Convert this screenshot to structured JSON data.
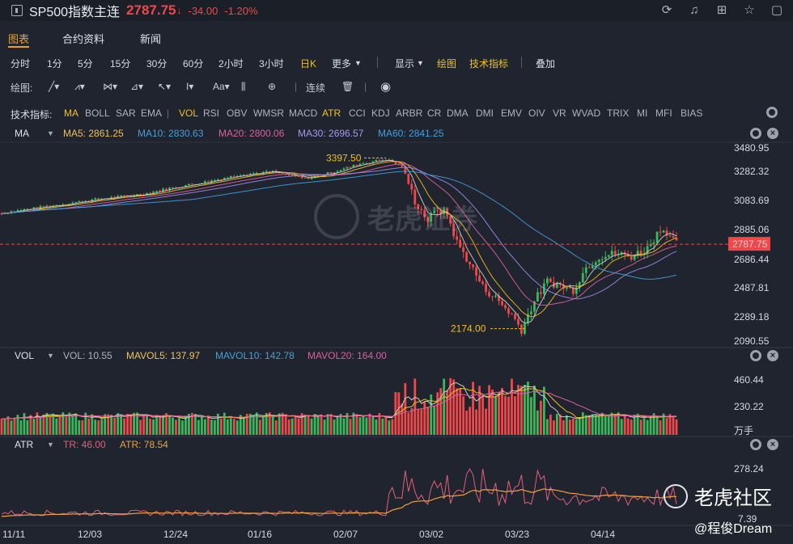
{
  "header": {
    "title": "SP500指数主连",
    "price": "2787.75",
    "arrow": "↓",
    "change": "-34.00",
    "change_pct": "-1.20%",
    "icons": [
      "refresh-icon",
      "bell-icon",
      "grid-icon",
      "star-icon",
      "square-icon"
    ]
  },
  "tabs": [
    "图表",
    "合约资料",
    "新闻"
  ],
  "periods": [
    "分时",
    "1分",
    "5分",
    "15分",
    "30分",
    "60分",
    "2小时",
    "3小时",
    "日K",
    "更多"
  ],
  "period_tools": [
    "显示",
    "绘图",
    "技术指标",
    "叠加"
  ],
  "drawbar": {
    "label": "绘图:",
    "continuous": "连续"
  },
  "indicators": {
    "label": "技术指标:",
    "main": [
      "MA",
      "BOLL",
      "SAR",
      "EMA"
    ],
    "sub": [
      "VOL",
      "RSI",
      "OBV",
      "WMSR",
      "MACD",
      "ATR",
      "CCI",
      "KDJ",
      "ARBR",
      "CR",
      "DMA",
      "DMI",
      "EMV",
      "OIV",
      "VR",
      "WVAD",
      "TRIX",
      "MI",
      "MFI",
      "BIAS"
    ]
  },
  "ma_panel": {
    "name": "MA",
    "ma5": "MA5: 2861.25",
    "ma10": "MA10: 2830.63",
    "ma20": "MA20: 2800.06",
    "ma30": "MA30: 2696.57",
    "ma60": "MA60: 2841.25",
    "price_axis": [
      "3480.95",
      "3282.32",
      "3083.69",
      "2885.06",
      "2686.44",
      "2487.81",
      "2289.18",
      "2090.55"
    ],
    "current": "2787.75",
    "high_mark": "3397.50",
    "low_mark": "2174.00"
  },
  "vol_panel": {
    "name": "VOL",
    "vol": "VOL: 10.55",
    "mavol5": "MAVOL5: 137.97",
    "mavol10": "MAVOL10: 142.78",
    "mavol20": "MAVOL20: 164.00",
    "axis": [
      "460.44",
      "230.22",
      "万手"
    ]
  },
  "atr_panel": {
    "name": "ATR",
    "tr": "TR: 46.00",
    "atr": "ATR: 78.54",
    "axis": [
      "278.24",
      "7.39"
    ]
  },
  "dates": [
    "11/11",
    "12/03",
    "12/24",
    "01/16",
    "02/07",
    "03/02",
    "03/23",
    "04/14"
  ],
  "watermark": "老虎证券",
  "brand": {
    "name": "老虎社区",
    "author": "@程俊Dream"
  },
  "colors": {
    "up": "#3cb85c",
    "down": "#f04848",
    "accent": "#f0a020",
    "ma5": "#e0e0e0",
    "ma10": "#f0c020",
    "ma20": "#e060a0",
    "ma30": "#9c8cf0",
    "ma60": "#40a0e0"
  }
}
